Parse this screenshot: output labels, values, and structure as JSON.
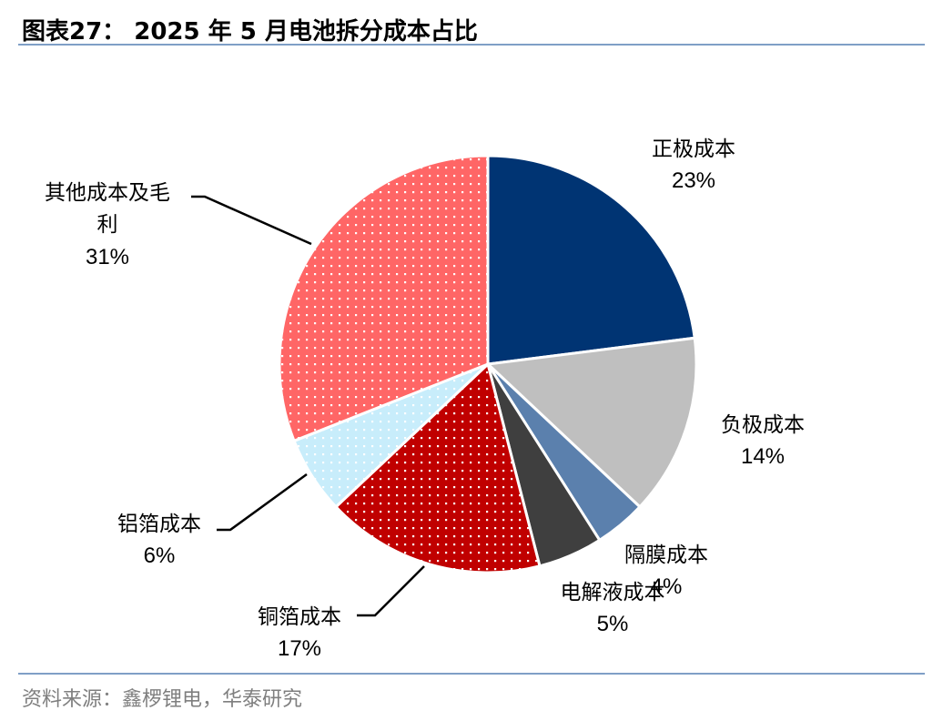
{
  "header": {
    "title": "图表27： 2025 年 5 月电池拆分成本占比"
  },
  "footer": {
    "source": "资料来源：鑫椤锂电，华泰研究"
  },
  "chart_data": {
    "type": "pie",
    "title": "图表27： 2025 年 5 月电池拆分成本占比",
    "slices": [
      {
        "label": "正极成本",
        "value": 23,
        "display": "23%",
        "color": "#003473",
        "pattern": "none"
      },
      {
        "label": "负极成本",
        "value": 14,
        "display": "14%",
        "color": "#bfbfbf",
        "pattern": "none"
      },
      {
        "label": "隔膜成本",
        "value": 4,
        "display": "4%",
        "color": "#5b80ad",
        "pattern": "none"
      },
      {
        "label": "电解液成本",
        "value": 5,
        "display": "5%",
        "color": "#3f3f3f",
        "pattern": "none"
      },
      {
        "label": "铜箔成本",
        "value": 17,
        "display": "17%",
        "color": "#c00000",
        "pattern": "dots"
      },
      {
        "label": "铝箔成本",
        "value": 6,
        "display": "6%",
        "color": "#c8edfb",
        "pattern": "dots"
      },
      {
        "label": "其他成本及毛利",
        "value": 31,
        "display": "31%",
        "color": "#ff6666",
        "pattern": "dots"
      }
    ]
  }
}
